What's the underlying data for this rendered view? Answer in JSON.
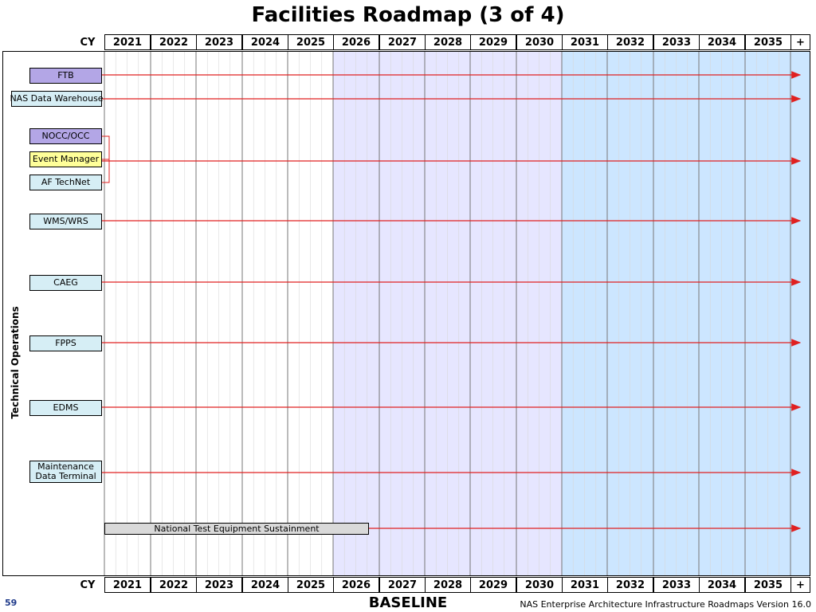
{
  "title": "Facilities Roadmap (3 of 4)",
  "axis": {
    "cy_label": "CY",
    "years": [
      "2021",
      "2022",
      "2023",
      "2024",
      "2025",
      "2026",
      "2027",
      "2028",
      "2029",
      "2030",
      "2031",
      "2032",
      "2033",
      "2034",
      "2035",
      "+"
    ]
  },
  "sidebar": {
    "label": "Technical Operations"
  },
  "programs": [
    {
      "label": "FTB",
      "fill": "#b3a6e6"
    },
    {
      "label": "NAS Data Warehouse",
      "fill": "#d6eef5"
    },
    {
      "label": "NOCC/OCC",
      "fill": "#b3a6e6"
    },
    {
      "label": "Event Manager",
      "fill": "#ffff99"
    },
    {
      "label": "AF TechNet",
      "fill": "#d6eef5"
    },
    {
      "label": "WMS/WRS",
      "fill": "#d6eef5"
    },
    {
      "label": "CAEG",
      "fill": "#d6eef5"
    },
    {
      "label": "FPPS",
      "fill": "#d6eef5"
    },
    {
      "label": "EDMS",
      "fill": "#d6eef5"
    },
    {
      "label": "Maintenance Data Terminal",
      "fill": "#d6eef5"
    }
  ],
  "sustainment": {
    "label": "National Test Equipment Sustainment"
  },
  "colors": {
    "arrow": "#e02020",
    "band_mid": "#e6e6ff",
    "band_far": "#cce6ff"
  },
  "footer": {
    "baseline": "BASELINE",
    "page_number": "59",
    "doc": "NAS Enterprise Architecture Infrastructure Roadmaps Version 16.0"
  }
}
